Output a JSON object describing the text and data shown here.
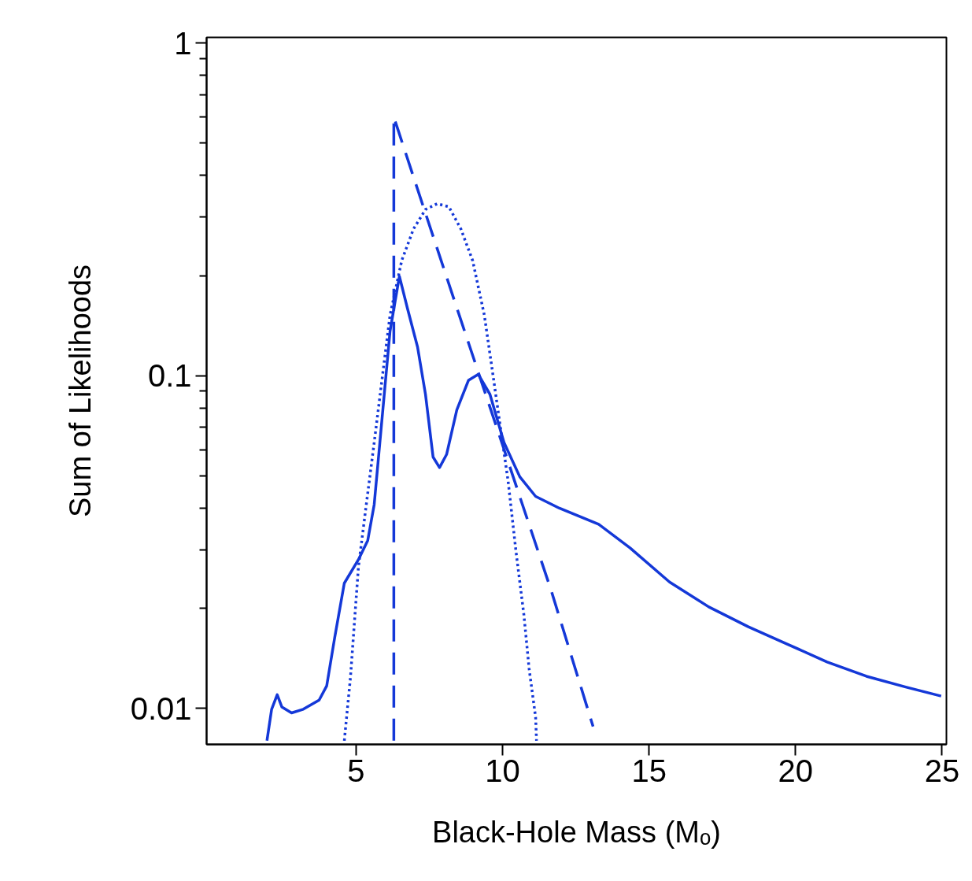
{
  "chart_data": {
    "type": "line",
    "xlabel": "Black-Hole Mass (Mₒ)",
    "ylabel": "Sum of Likelihoods",
    "log": "y",
    "grid": false,
    "marker": "none",
    "xlim": [
      -0.1,
      25.15
    ],
    "ylim": [
      0.0078,
      1.04
    ],
    "xticks": [
      5,
      10,
      15,
      20,
      25
    ],
    "yticks": [
      {
        "value": 0.01,
        "label": "0.01"
      },
      {
        "value": 0.02,
        "label": null
      },
      {
        "value": 0.03,
        "label": null
      },
      {
        "value": 0.04,
        "label": null
      },
      {
        "value": 0.05,
        "label": null
      },
      {
        "value": 0.06,
        "label": null
      },
      {
        "value": 0.07,
        "label": null
      },
      {
        "value": 0.08,
        "label": null
      },
      {
        "value": 0.09,
        "label": null
      },
      {
        "value": 0.1,
        "label": "0.1"
      },
      {
        "value": 0.2,
        "label": null
      },
      {
        "value": 0.3,
        "label": null
      },
      {
        "value": 0.4,
        "label": null
      },
      {
        "value": 0.5,
        "label": null
      },
      {
        "value": 0.6,
        "label": null
      },
      {
        "value": 0.7,
        "label": null
      },
      {
        "value": 0.8,
        "label": null
      },
      {
        "value": 0.9,
        "label": null
      },
      {
        "value": 1,
        "label": "1"
      }
    ],
    "series": [
      {
        "color": "#1438d8",
        "line_style": "solid",
        "x": [
          1.96,
          2.12,
          2.31,
          2.47,
          2.8,
          3.2,
          3.74,
          4.0,
          4.27,
          4.6,
          5.08,
          5.4,
          5.62,
          5.89,
          6.16,
          6.48,
          6.75,
          7.1,
          7.37,
          7.63,
          7.85,
          8.09,
          8.44,
          8.84,
          9.17,
          9.57,
          10.05,
          10.59,
          11.13,
          11.94,
          13.28,
          14.35,
          15.7,
          17.04,
          18.39,
          19.73,
          21.08,
          22.42,
          23.76,
          24.97
        ],
        "values": [
          0.008,
          0.00995,
          0.011,
          0.0101,
          0.0097,
          0.00995,
          0.0106,
          0.0117,
          0.0163,
          0.0238,
          0.028,
          0.032,
          0.041,
          0.0747,
          0.136,
          0.199,
          0.16,
          0.122,
          0.088,
          0.057,
          0.053,
          0.058,
          0.079,
          0.097,
          0.101,
          0.088,
          0.063,
          0.0497,
          0.0434,
          0.04,
          0.0358,
          0.0304,
          0.024,
          0.0202,
          0.0176,
          0.0156,
          0.0138,
          0.0125,
          0.0116,
          0.0109
        ]
      },
      {
        "color": "#1438d8",
        "line_style": "dashed",
        "x": [
          6.29,
          6.29,
          7.37,
          8.44,
          9.52,
          10.59,
          11.67,
          13.09
        ],
        "values": [
          0.008,
          0.599,
          0.308,
          0.16,
          0.083,
          0.0433,
          0.0225,
          0.00883
        ]
      },
      {
        "color": "#1438d8",
        "line_style": "dotted",
        "x": [
          4.6,
          4.81,
          5.08,
          5.35,
          5.62,
          5.89,
          6.16,
          6.56,
          6.96,
          7.37,
          7.77,
          8.17,
          8.58,
          8.98,
          9.38,
          9.65,
          9.92,
          10.19,
          10.46,
          10.73,
          10.91,
          11.13,
          11.16
        ],
        "values": [
          0.008,
          0.0124,
          0.0265,
          0.041,
          0.063,
          0.098,
          0.152,
          0.222,
          0.276,
          0.316,
          0.329,
          0.322,
          0.276,
          0.222,
          0.152,
          0.104,
          0.0708,
          0.0483,
          0.0296,
          0.0191,
          0.0131,
          0.0094,
          0.008
        ]
      }
    ]
  }
}
